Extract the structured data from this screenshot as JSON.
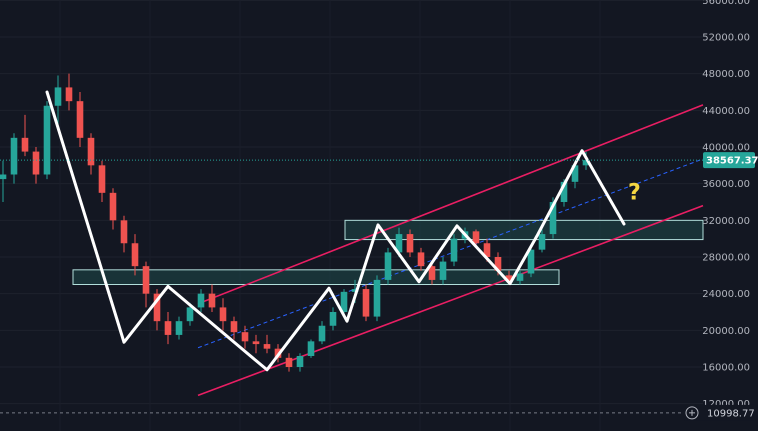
{
  "chart_data": {
    "type": "candlestick",
    "ylim": [
      11000,
      56000
    ],
    "y_ticks": [
      {
        "value": 12000,
        "label": "12000.00"
      },
      {
        "value": 16000,
        "label": "16000.00"
      },
      {
        "value": 20000,
        "label": "20000.00"
      },
      {
        "value": 24000,
        "label": "24000.00"
      },
      {
        "value": 28000,
        "label": "28000.00"
      },
      {
        "value": 32000,
        "label": "32000.00"
      },
      {
        "value": 36000,
        "label": "36000.00"
      },
      {
        "value": 40000,
        "label": "40000.00"
      },
      {
        "value": 44000,
        "label": "44000.00"
      },
      {
        "value": 48000,
        "label": "48000.00"
      },
      {
        "value": 52000,
        "label": "52000.00"
      },
      {
        "value": 56000,
        "label": "56000.00"
      }
    ],
    "current_price": {
      "value": 38567.37,
      "label": "38567.37",
      "color": "#26a69a"
    },
    "bottom_marker": {
      "value": 10998.77,
      "label": "10998.77"
    },
    "colors": {
      "up": "#26a69a",
      "down": "#ef5350",
      "zigzag": "#ffffff",
      "channel": "#e91e63",
      "midline": "#2962ff",
      "zone_fill": "#1f4a4a",
      "zone_border": "#b2dfdb",
      "question": "#f5d742",
      "background": "#131722"
    },
    "candles_ohlc": [
      [
        36500,
        38500,
        34000,
        37000
      ],
      [
        37000,
        41500,
        36000,
        41000
      ],
      [
        41000,
        43500,
        39000,
        39500
      ],
      [
        39500,
        40000,
        36000,
        37000
      ],
      [
        37000,
        45000,
        36500,
        44500
      ],
      [
        44500,
        47800,
        42000,
        46500
      ],
      [
        46500,
        48000,
        44000,
        45000
      ],
      [
        45000,
        46000,
        40000,
        41000
      ],
      [
        41000,
        41500,
        37000,
        38000
      ],
      [
        38000,
        38500,
        34000,
        35000
      ],
      [
        35000,
        35500,
        31000,
        32000
      ],
      [
        32000,
        32500,
        28500,
        29500
      ],
      [
        29500,
        30500,
        26000,
        27000
      ],
      [
        27000,
        27500,
        22500,
        24000
      ],
      [
        24000,
        24500,
        20000,
        21000
      ],
      [
        21000,
        22000,
        18500,
        19500
      ],
      [
        19500,
        21500,
        19000,
        21000
      ],
      [
        21000,
        23000,
        20500,
        22500
      ],
      [
        22500,
        24500,
        22000,
        24000
      ],
      [
        24000,
        25000,
        22000,
        22500
      ],
      [
        22500,
        23500,
        20000,
        21000
      ],
      [
        21000,
        21500,
        19000,
        19800
      ],
      [
        19800,
        20500,
        18000,
        18800
      ],
      [
        18800,
        19500,
        17500,
        18500
      ],
      [
        18500,
        19500,
        17500,
        18000
      ],
      [
        18000,
        18500,
        16500,
        17000
      ],
      [
        17000,
        17500,
        15500,
        16000
      ],
      [
        16000,
        17500,
        15500,
        17200
      ],
      [
        17200,
        19000,
        17000,
        18800
      ],
      [
        18800,
        21000,
        18500,
        20500
      ],
      [
        20500,
        22500,
        20000,
        22000
      ],
      [
        22000,
        24500,
        21500,
        24200
      ],
      [
        24200,
        25500,
        23000,
        24500
      ],
      [
        24500,
        25000,
        21000,
        21500
      ],
      [
        21500,
        26000,
        21000,
        25500
      ],
      [
        25500,
        29000,
        25000,
        28500
      ],
      [
        28500,
        31200,
        28000,
        30500
      ],
      [
        30500,
        31000,
        28000,
        28500
      ],
      [
        28500,
        29000,
        26500,
        27000
      ],
      [
        27000,
        27500,
        25000,
        25500
      ],
      [
        25500,
        28000,
        25000,
        27500
      ],
      [
        27500,
        30500,
        27000,
        30000
      ],
      [
        30000,
        31200,
        29500,
        30800
      ],
      [
        30800,
        31000,
        29000,
        29500
      ],
      [
        29500,
        30000,
        27500,
        28000
      ],
      [
        28000,
        28500,
        26000,
        26500
      ],
      [
        26000,
        26500,
        25000,
        25400
      ],
      [
        25400,
        26500,
        25000,
        26200
      ],
      [
        26200,
        29000,
        25800,
        28800
      ],
      [
        28800,
        31000,
        28500,
        30500
      ],
      [
        30500,
        34500,
        30000,
        34000
      ],
      [
        34000,
        36500,
        33500,
        36200
      ],
      [
        36200,
        38500,
        35500,
        38000
      ],
      [
        38000,
        39500,
        37500,
        38567
      ]
    ],
    "candles_x_start": 3,
    "candles_x_end": 586,
    "zigzag": [
      {
        "x": 47,
        "y": 46000
      },
      {
        "x": 124,
        "y": 18700
      },
      {
        "x": 168,
        "y": 24800
      },
      {
        "x": 245,
        "y": 17700
      },
      {
        "x": 267,
        "y": 15700
      },
      {
        "x": 329,
        "y": 24600
      },
      {
        "x": 347,
        "y": 21000
      },
      {
        "x": 378,
        "y": 31500
      },
      {
        "x": 419,
        "y": 25300
      },
      {
        "x": 457,
        "y": 31400
      },
      {
        "x": 510,
        "y": 25100
      },
      {
        "x": 537,
        "y": 30300
      },
      {
        "x": 582,
        "y": 39600
      },
      {
        "x": 624,
        "y": 31600
      }
    ],
    "channel_upper": [
      {
        "x": 198,
        "y": 22900
      },
      {
        "x": 703,
        "y": 44600
      }
    ],
    "channel_lower": [
      {
        "x": 198,
        "y": 12900
      },
      {
        "x": 703,
        "y": 33600
      }
    ],
    "channel_mid": [
      {
        "x": 198,
        "y": 18100
      },
      {
        "x": 703,
        "y": 38700
      }
    ],
    "zones": [
      {
        "x1": 73,
        "x2": 559,
        "y_low": 25000,
        "y_high": 26600
      },
      {
        "x1": 345,
        "x2": 703,
        "y_low": 29900,
        "y_high": 32000
      }
    ],
    "annotation": "?"
  }
}
